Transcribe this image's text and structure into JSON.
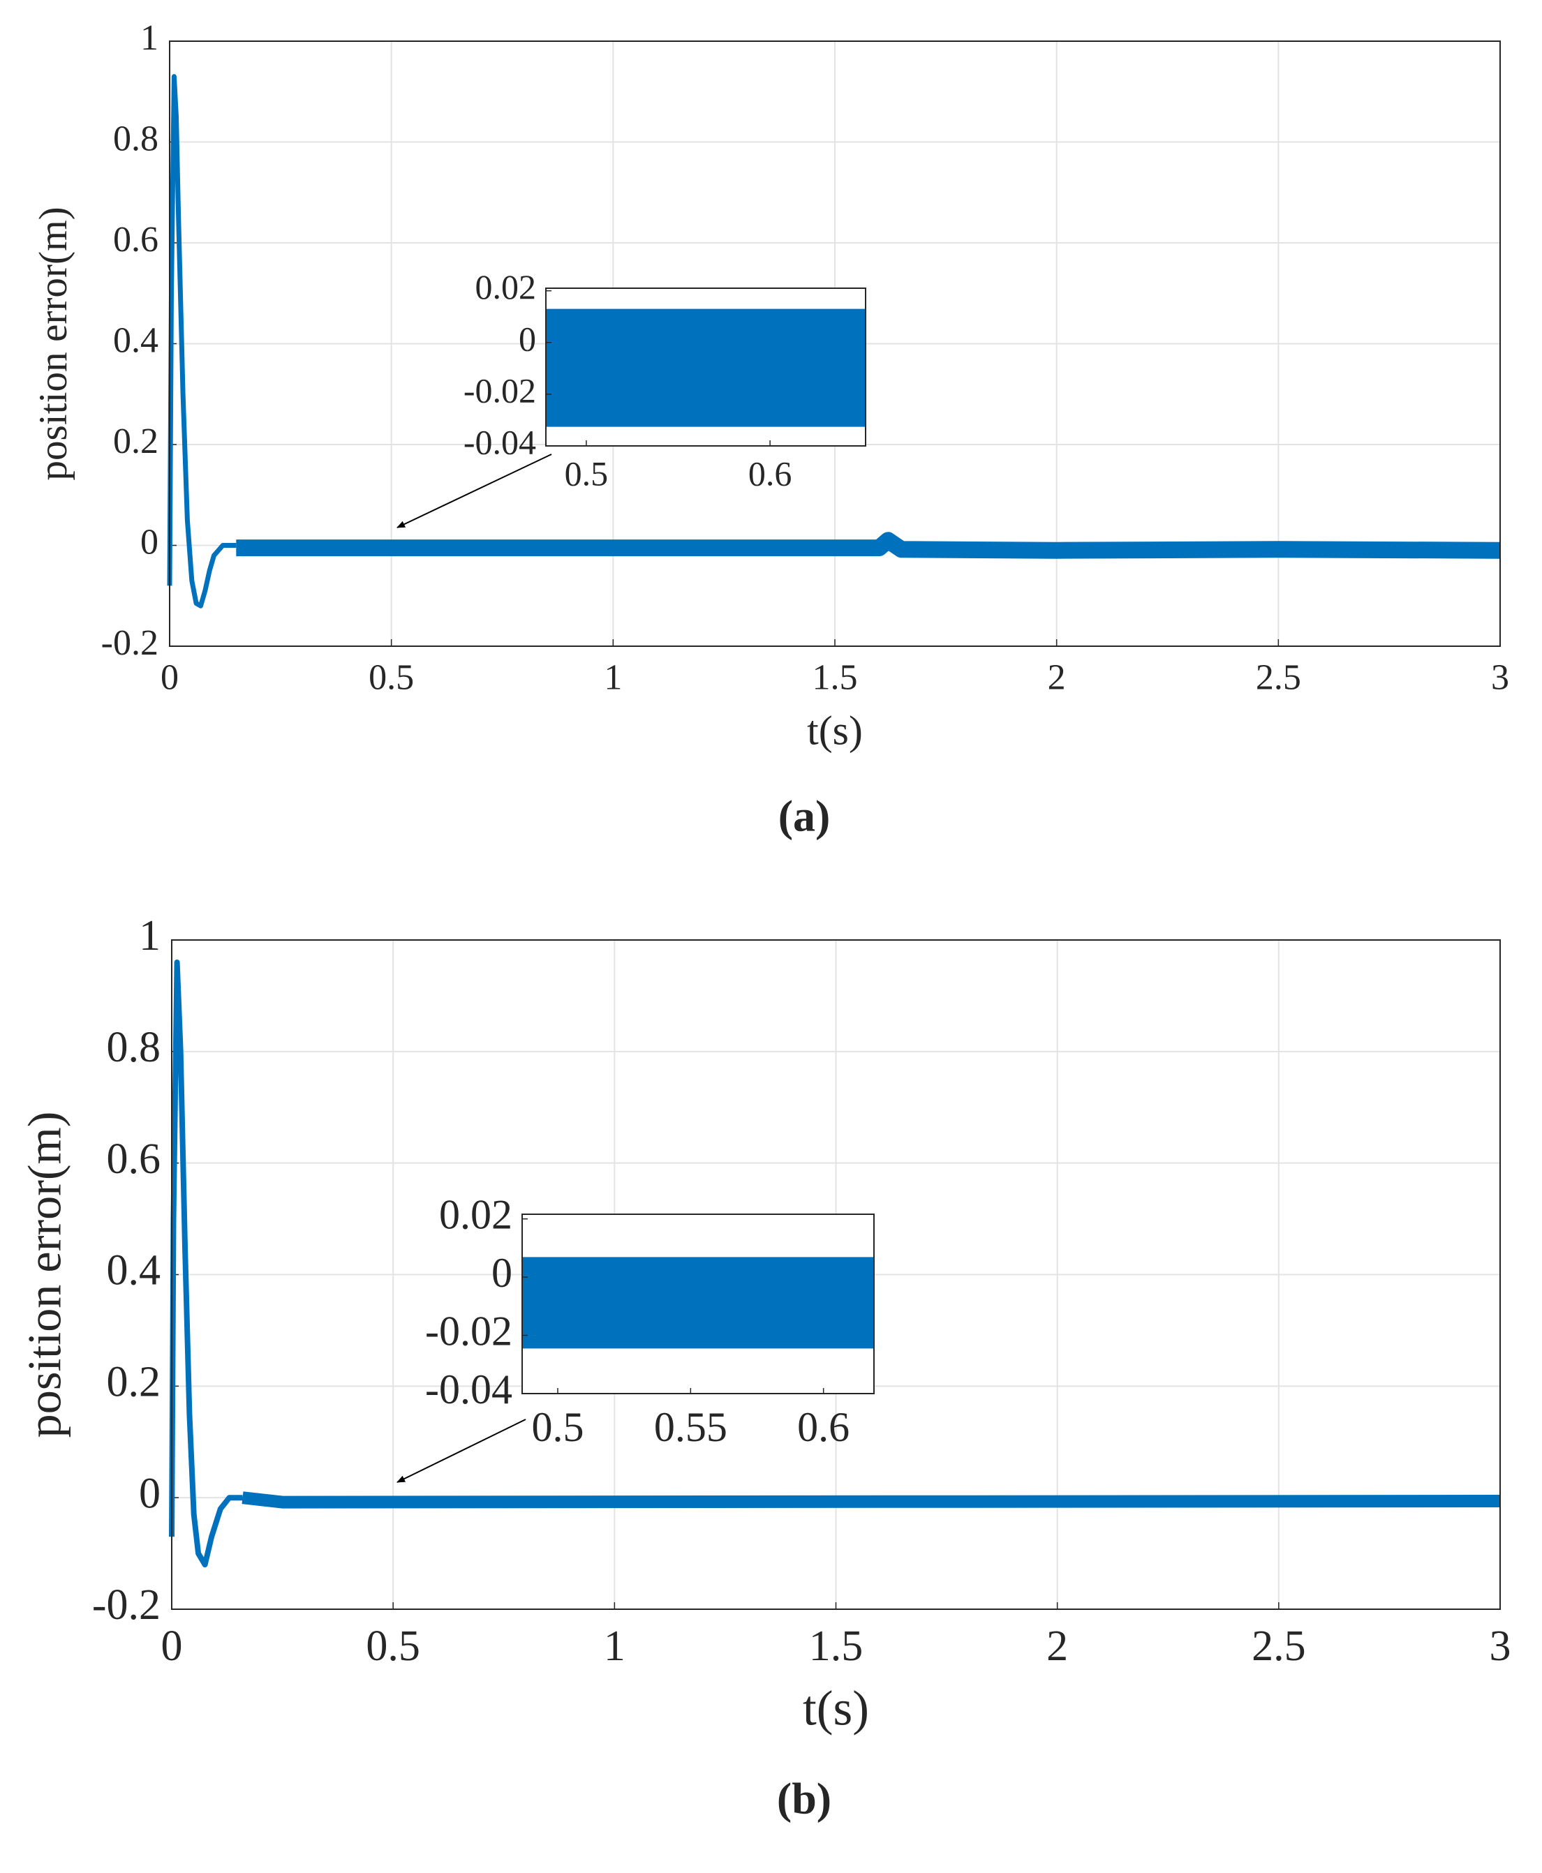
{
  "chart_data": [
    {
      "type": "line",
      "caption": "(a)",
      "xlabel": "t(s)",
      "ylabel": "position error(m)",
      "xlim": [
        0,
        3
      ],
      "ylim": [
        -0.2,
        1
      ],
      "xticks": [
        0,
        0.5,
        1,
        1.5,
        2,
        2.5,
        3
      ],
      "yticks": [
        -0.2,
        0,
        0.2,
        0.4,
        0.6,
        0.8,
        1
      ],
      "grid": true,
      "series": [
        {
          "color": "#0072bd",
          "x": [
            0,
            0.004,
            0.01,
            0.015,
            0.02,
            0.03,
            0.04,
            0.05,
            0.06,
            0.07,
            0.08,
            0.09,
            0.1,
            0.12,
            0.15
          ],
          "values": [
            -0.08,
            0.5,
            0.93,
            0.85,
            0.65,
            0.3,
            0.05,
            -0.07,
            -0.115,
            -0.12,
            -0.09,
            -0.05,
            -0.02,
            0,
            0
          ]
        },
        {
          "color": "#0072bd",
          "x": [
            0.15,
            0.5,
            1,
            1.6,
            1.62,
            1.65,
            2,
            2.5,
            3
          ],
          "values": [
            -0.005,
            -0.005,
            -0.005,
            -0.005,
            0.01,
            -0.008,
            -0.01,
            -0.008,
            -0.01
          ]
        }
      ],
      "inset": {
        "xlim": [
          0.478,
          0.652
        ],
        "ylim": [
          -0.04,
          0.021
        ],
        "xticks": [
          0.5,
          0.6
        ],
        "yticks": [
          -0.04,
          -0.02,
          0,
          0.02
        ],
        "grid": false,
        "x": [
          0.478,
          0.652
        ],
        "series": [
          {
            "color": "#0072bd",
            "values": [
              0.013,
              0.013
            ]
          },
          {
            "color": "#0072bd",
            "values": [
              -0.0326,
              -0.0326
            ]
          }
        ]
      }
    },
    {
      "type": "line",
      "caption": "(b)",
      "xlabel": "t(s)",
      "ylabel": "position error(m)",
      "xlim": [
        0,
        3
      ],
      "ylim": [
        -0.2,
        1
      ],
      "xticks": [
        0,
        0.5,
        1,
        1.5,
        2,
        2.5,
        3
      ],
      "yticks": [
        -0.2,
        0,
        0.2,
        0.4,
        0.6,
        0.8,
        1
      ],
      "grid": true,
      "series": [
        {
          "color": "#0072bd",
          "x": [
            0,
            0.004,
            0.012,
            0.02,
            0.03,
            0.04,
            0.05,
            0.06,
            0.075,
            0.09,
            0.11,
            0.13,
            0.16
          ],
          "values": [
            -0.07,
            0.5,
            0.96,
            0.8,
            0.45,
            0.15,
            -0.03,
            -0.1,
            -0.12,
            -0.07,
            -0.02,
            0,
            0
          ]
        },
        {
          "color": "#0072bd",
          "x": [
            0.16,
            0.25,
            3
          ],
          "values": [
            0,
            -0.008,
            -0.006
          ]
        }
      ],
      "inset": {
        "xlim": [
          0.4866,
          0.619
        ],
        "ylim": [
          -0.04,
          0.0216
        ],
        "xticks": [
          0.5,
          0.55,
          0.6
        ],
        "yticks": [
          -0.04,
          -0.02,
          0,
          0.02
        ],
        "grid": false,
        "x": [
          0.4866,
          0.619
        ],
        "series": [
          {
            "color": "#0072bd",
            "values": [
              0.0069,
              0.0069
            ]
          },
          {
            "color": "#0072bd",
            "values": [
              -0.0245,
              -0.0245
            ]
          }
        ]
      }
    }
  ]
}
